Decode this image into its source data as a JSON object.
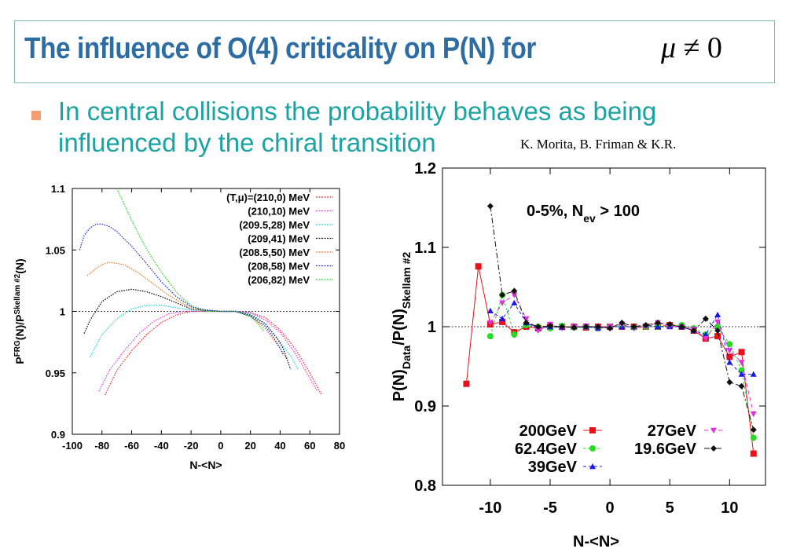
{
  "slide": {
    "title": "The influence of O(4) criticality on  P(N) for",
    "title_math_symbol": "μ",
    "title_math_rest": "≠ 0",
    "bullet": "In central collisions the probability behaves as being influenced by the chiral transition",
    "credit": "K. Morita, B. Friman & K.R."
  },
  "chart_data": [
    {
      "type": "line",
      "ylabel_parts": [
        "P",
        "FRG",
        "(N)/P",
        "Skellam #2",
        "(N)"
      ],
      "xlabel": "N-<N>",
      "xlim": [
        -100,
        80
      ],
      "ylim": [
        0.9,
        1.1
      ],
      "xticks": [
        "-100",
        "-80",
        "-60",
        "-40",
        "-20",
        "0",
        "20",
        "40",
        "60",
        "80"
      ],
      "yticks": [
        "0.9",
        "0.95",
        "1",
        "1.05",
        "1.1"
      ],
      "reference_line": 1,
      "legend_placement": "top-right",
      "series": [
        {
          "name": "(T,μ)=(210,0) MeV",
          "color": "#e8333a",
          "x": [
            -78,
            -70,
            -60,
            -50,
            -40,
            -30,
            -20,
            -10,
            0,
            10,
            20,
            30,
            40,
            50,
            60,
            68
          ],
          "y": [
            0.932,
            0.952,
            0.968,
            0.981,
            0.991,
            0.997,
            1.0,
            1.0,
            1.0,
            1.0,
            0.999,
            0.995,
            0.985,
            0.97,
            0.95,
            0.932
          ]
        },
        {
          "name": "(210,10) MeV",
          "color": "#e040e0",
          "x": [
            -82,
            -75,
            -65,
            -55,
            -45,
            -35,
            -25,
            -15,
            0,
            10,
            20,
            30,
            40,
            50,
            58,
            65
          ],
          "y": [
            0.935,
            0.952,
            0.968,
            0.982,
            0.992,
            0.998,
            1.0,
            1.0,
            1.0,
            1.0,
            0.999,
            0.993,
            0.983,
            0.966,
            0.95,
            0.935
          ]
        },
        {
          "name": "(209.5,28) MeV",
          "color": "#20d4e0",
          "x": [
            -88,
            -80,
            -70,
            -60,
            -50,
            -40,
            -30,
            -20,
            0,
            10,
            20,
            30,
            40,
            48,
            52
          ],
          "y": [
            0.963,
            0.981,
            0.994,
            1.002,
            1.005,
            1.005,
            1.003,
            1.001,
            1.0,
            1.0,
            0.998,
            0.99,
            0.975,
            0.962,
            0.953
          ]
        },
        {
          "name": "(209,41) MeV",
          "color": "#111111",
          "x": [
            -92,
            -88,
            -80,
            -70,
            -60,
            -50,
            -40,
            -30,
            -20,
            0,
            10,
            20,
            30,
            38,
            42,
            47
          ],
          "y": [
            0.982,
            0.993,
            1.008,
            1.016,
            1.018,
            1.016,
            1.012,
            1.007,
            1.002,
            1.0,
            1.0,
            0.997,
            0.99,
            0.978,
            0.97,
            0.953
          ]
        },
        {
          "name": "(208.5,50) MeV",
          "color": "#f07830",
          "x": [
            -90,
            -85,
            -80,
            -75,
            -65,
            -55,
            -45,
            -35,
            -25,
            -15,
            0,
            10,
            20,
            30,
            40,
            44
          ],
          "y": [
            1.029,
            1.034,
            1.038,
            1.04,
            1.038,
            1.031,
            1.022,
            1.013,
            1.006,
            1.001,
            1.0,
            1.0,
            0.996,
            0.986,
            0.97,
            0.962
          ]
        },
        {
          "name": "(208,58) MeV",
          "color": "#2030e0",
          "x": [
            -95,
            -92,
            -88,
            -84,
            -80,
            -75,
            -70,
            -60,
            -50,
            -40,
            -30,
            -20,
            -10,
            0,
            10,
            20,
            30,
            36,
            40,
            42
          ],
          "y": [
            1.05,
            1.062,
            1.068,
            1.071,
            1.071,
            1.069,
            1.065,
            1.053,
            1.039,
            1.024,
            1.012,
            1.004,
            1.001,
            1.0,
            1.0,
            0.996,
            0.988,
            0.978,
            0.97,
            0.965
          ]
        },
        {
          "name": "(206,82) MeV",
          "color": "#30d030",
          "x": [
            -70,
            -65,
            -60,
            -55,
            -50,
            -45,
            -40,
            -35,
            -30,
            -25,
            -20,
            -15,
            -10,
            0,
            10,
            20,
            25,
            29
          ],
          "y": [
            1.1,
            1.087,
            1.074,
            1.062,
            1.051,
            1.041,
            1.032,
            1.024,
            1.016,
            1.01,
            1.005,
            1.002,
            1.0,
            1.0,
            1.0,
            0.996,
            0.99,
            0.984
          ]
        }
      ]
    },
    {
      "type": "line",
      "ylabel_parts": [
        "P(N)",
        "Data",
        "/P(N)",
        "Skellam #2"
      ],
      "xlabel": "N-<N>",
      "xlim": [
        -14,
        13
      ],
      "ylim": [
        0.8,
        1.2
      ],
      "xticks": [
        "-10",
        "-5",
        "0",
        "5",
        "10"
      ],
      "xtick_values": [
        -10,
        -5,
        0,
        5,
        10
      ],
      "yticks": [
        "0.8",
        "0.9",
        "1",
        "1.1",
        "1.2"
      ],
      "reference_line": 1,
      "annotation_parts": [
        "0-5%, N",
        "ev",
        " > 100"
      ],
      "legend_placement": "bottom-left",
      "series": [
        {
          "name": "200GeV",
          "color": "#e8101a",
          "marker": "square",
          "dash": "none",
          "x": [
            -12,
            -11,
            -10,
            -9,
            -8,
            -7,
            -6,
            -5,
            -4,
            -3,
            -2,
            -1,
            0,
            1,
            2,
            3,
            4,
            5,
            6,
            7,
            8,
            9,
            10,
            11,
            12
          ],
          "y": [
            0.928,
            1.076,
            1.003,
            1.006,
            0.993,
            1.0,
            0.998,
            1.0,
            1.0,
            1.0,
            0.999,
            1.0,
            1.0,
            1.0,
            1.0,
            1.0,
            1.0,
            1.002,
            1.0,
            0.995,
            0.985,
            0.988,
            0.962,
            0.968,
            0.84
          ]
        },
        {
          "name": "62.4GeV",
          "color": "#22dd22",
          "marker": "circle",
          "dash": "3,3",
          "x": [
            -10,
            -9,
            -8,
            -7,
            -6,
            -5,
            -4,
            -3,
            -2,
            -1,
            0,
            1,
            2,
            3,
            4,
            5,
            6,
            7,
            8,
            9,
            10,
            11,
            12
          ],
          "y": [
            0.988,
            1.04,
            0.99,
            1.002,
            1.0,
            0.998,
            1.001,
            0.999,
            1.0,
            0.998,
            1.0,
            1.001,
            0.999,
            1.0,
            1.0,
            1.001,
            1.002,
            0.998,
            0.99,
            1.0,
            0.978,
            0.945,
            0.86
          ]
        },
        {
          "name": "39GeV",
          "color": "#1a1ae8",
          "marker": "triangle",
          "dash": "4,3",
          "x": [
            -10,
            -9,
            -8,
            -7,
            -6,
            -5,
            -4,
            -3,
            -2,
            -1,
            0,
            1,
            2,
            3,
            4,
            5,
            6,
            7,
            8,
            9,
            10,
            11,
            12
          ],
          "y": [
            1.02,
            1.01,
            1.03,
            1.005,
            0.998,
            1.0,
            0.999,
            1.0,
            1.0,
            0.998,
            1.0,
            1.0,
            1.0,
            1.002,
            1.0,
            1.0,
            1.0,
            0.995,
            0.99,
            1.015,
            0.955,
            0.94,
            0.94
          ]
        },
        {
          "name": "27GeV",
          "color": "#e030e0",
          "marker": "triangle-down",
          "dash": "5,4",
          "x": [
            -10,
            -9,
            -8,
            -7,
            -6,
            -5,
            -4,
            -3,
            -2,
            -1,
            0,
            1,
            2,
            3,
            4,
            5,
            6,
            7,
            8,
            9,
            10,
            11,
            12
          ],
          "y": [
            1.005,
            1.03,
            1.04,
            1.01,
            0.995,
            1.003,
            0.998,
            1.0,
            1.001,
            0.999,
            1.0,
            1.003,
            0.998,
            1.0,
            1.005,
            1.001,
            1.0,
            0.997,
            0.985,
            1.006,
            0.97,
            0.955,
            0.89
          ]
        },
        {
          "name": "19.6GeV",
          "color": "#111111",
          "marker": "diamond",
          "dash": "7,3,2,3",
          "x": [
            -10,
            -9,
            -8,
            -7,
            -6,
            -5,
            -4,
            -3,
            -2,
            -1,
            0,
            1,
            2,
            3,
            4,
            5,
            6,
            7,
            8,
            9,
            10,
            11,
            12
          ],
          "y": [
            1.152,
            1.04,
            1.045,
            1.005,
            1.0,
            1.001,
            1.0,
            0.999,
            1.0,
            1.0,
            0.998,
            1.005,
            1.0,
            1.002,
            1.005,
            1.003,
            1.0,
            0.995,
            1.01,
            0.995,
            0.93,
            0.925,
            0.87
          ]
        }
      ]
    }
  ]
}
